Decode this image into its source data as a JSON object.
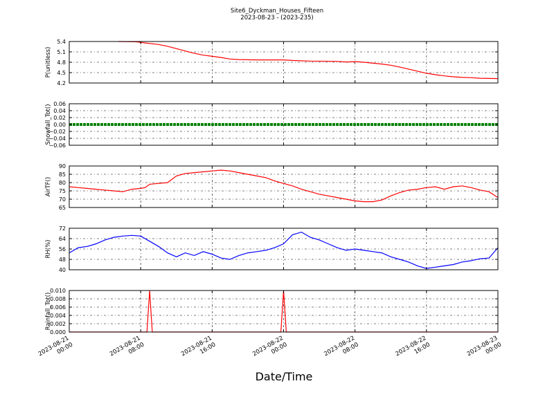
{
  "header": {
    "title": "Site6_Dyckman_Houses_Fifteen",
    "subtitle": "2023-08-23 - (2023-235)"
  },
  "xlabel": "Date/Time",
  "x_ticks": [
    {
      "t": 0,
      "line1": "2023-08-21",
      "line2": "00:00"
    },
    {
      "t": 8,
      "line1": "2023-08-21",
      "line2": "08:00"
    },
    {
      "t": 16,
      "line1": "2023-08-21",
      "line2": "16:00"
    },
    {
      "t": 24,
      "line1": "2023-08-22",
      "line2": "00:00"
    },
    {
      "t": 32,
      "line1": "2023-08-22",
      "line2": "08:00"
    },
    {
      "t": 40,
      "line1": "2023-08-22",
      "line2": "16:00"
    },
    {
      "t": 48,
      "line1": "2023-08-23",
      "line2": "00:00"
    }
  ],
  "chart_data": [
    {
      "type": "line",
      "ylabel": "P(unitless)",
      "ylim": [
        4.2,
        5.6
      ],
      "yticks": [
        "4.2",
        "4.5",
        "4.8",
        "5.1",
        "5.4"
      ],
      "grid": true,
      "color": "#ff0000",
      "x_start": "2023-08-21 00:00",
      "x_end": "2023-08-23 00:00",
      "points": [
        [
          5.5,
          5.6
        ],
        [
          7.5,
          5.59
        ],
        [
          8.5,
          5.55
        ],
        [
          10,
          5.5
        ],
        [
          11,
          5.44
        ],
        [
          12,
          5.36
        ],
        [
          13,
          5.28
        ],
        [
          14,
          5.2
        ],
        [
          15,
          5.14
        ],
        [
          16,
          5.1
        ],
        [
          17,
          5.06
        ],
        [
          18,
          5.01
        ],
        [
          19,
          4.99
        ],
        [
          21,
          4.98
        ],
        [
          24,
          4.98
        ],
        [
          25,
          4.96
        ],
        [
          27,
          4.94
        ],
        [
          30,
          4.93
        ],
        [
          31,
          4.91
        ],
        [
          32,
          4.92
        ],
        [
          33,
          4.9
        ],
        [
          35,
          4.84
        ],
        [
          36,
          4.8
        ],
        [
          37,
          4.74
        ],
        [
          38,
          4.67
        ],
        [
          39,
          4.6
        ],
        [
          40,
          4.53
        ],
        [
          41,
          4.48
        ],
        [
          42,
          4.44
        ],
        [
          43,
          4.41
        ],
        [
          44,
          4.39
        ],
        [
          45,
          4.38
        ],
        [
          46,
          4.36
        ],
        [
          48,
          4.35
        ]
      ]
    },
    {
      "type": "line",
      "ylabel": "Snowfall_Tot()",
      "ylim": [
        -0.06,
        0.06
      ],
      "yticks": [
        "−0.06",
        "−0.04",
        "−0.02",
        "0.00",
        "0.02",
        "0.04",
        "0.06"
      ],
      "grid": true,
      "color": "#008000",
      "x_start": "2023-08-21 00:00",
      "x_end": "2023-08-23 00:00",
      "points": [
        [
          0,
          0
        ],
        [
          48,
          0
        ]
      ]
    },
    {
      "type": "line",
      "ylabel": "AirTF()",
      "ylim": [
        65,
        90
      ],
      "yticks": [
        "65",
        "70",
        "75",
        "80",
        "85",
        "90"
      ],
      "grid": true,
      "color": "#ff0000",
      "x_start": "2023-08-21 00:00",
      "x_end": "2023-08-23 00:00",
      "points": [
        [
          0,
          77.5
        ],
        [
          1,
          77
        ],
        [
          2,
          76.5
        ],
        [
          3,
          76
        ],
        [
          4,
          75.5
        ],
        [
          5,
          75
        ],
        [
          6,
          74.5
        ],
        [
          7,
          76
        ],
        [
          8,
          76.5
        ],
        [
          8.5,
          77
        ],
        [
          9,
          79
        ],
        [
          10,
          79.5
        ],
        [
          11,
          80
        ],
        [
          12,
          84
        ],
        [
          13,
          85.5
        ],
        [
          14,
          86
        ],
        [
          15,
          86.5
        ],
        [
          16,
          87
        ],
        [
          17,
          87.5
        ],
        [
          18,
          87
        ],
        [
          19,
          86
        ],
        [
          20,
          85
        ],
        [
          21,
          84
        ],
        [
          22,
          83
        ],
        [
          23,
          81
        ],
        [
          24,
          79.5
        ],
        [
          25,
          78
        ],
        [
          26,
          76
        ],
        [
          27,
          74.5
        ],
        [
          28,
          73
        ],
        [
          29,
          72
        ],
        [
          30,
          71
        ],
        [
          31,
          70
        ],
        [
          32,
          69
        ],
        [
          33,
          68.5
        ],
        [
          34,
          68.5
        ],
        [
          35,
          69.5
        ],
        [
          36,
          72
        ],
        [
          37,
          74
        ],
        [
          38,
          75.5
        ],
        [
          39,
          76
        ],
        [
          40,
          77
        ],
        [
          41,
          77.5
        ],
        [
          42,
          76
        ],
        [
          43,
          77.5
        ],
        [
          44,
          78
        ],
        [
          45,
          77
        ],
        [
          46,
          75.5
        ],
        [
          47,
          74.5
        ],
        [
          48,
          71
        ]
      ]
    },
    {
      "type": "line",
      "ylabel": "RH(%)",
      "ylim": [
        40,
        72
      ],
      "yticks": [
        "40",
        "48",
        "56",
        "64",
        "72"
      ],
      "grid": true,
      "color": "#0000ff",
      "x_start": "2023-08-21 00:00",
      "x_end": "2023-08-23 00:00",
      "points": [
        [
          0,
          53
        ],
        [
          1,
          57
        ],
        [
          2,
          58
        ],
        [
          3,
          60
        ],
        [
          4,
          63
        ],
        [
          5,
          65
        ],
        [
          6,
          66
        ],
        [
          7,
          66.5
        ],
        [
          8,
          66
        ],
        [
          9,
          62
        ],
        [
          10,
          58
        ],
        [
          11,
          53
        ],
        [
          12,
          50
        ],
        [
          13,
          53
        ],
        [
          14,
          51
        ],
        [
          15,
          54
        ],
        [
          16,
          52
        ],
        [
          17,
          49
        ],
        [
          18,
          48
        ],
        [
          19,
          51
        ],
        [
          20,
          53
        ],
        [
          21,
          54
        ],
        [
          22,
          55
        ],
        [
          23,
          57
        ],
        [
          24,
          60
        ],
        [
          25,
          67
        ],
        [
          26,
          69
        ],
        [
          27,
          65
        ],
        [
          28,
          63
        ],
        [
          29,
          60
        ],
        [
          30,
          57
        ],
        [
          31,
          55
        ],
        [
          32,
          56
        ],
        [
          33,
          55
        ],
        [
          34,
          54
        ],
        [
          35,
          53
        ],
        [
          36,
          50
        ],
        [
          37,
          48
        ],
        [
          38,
          46
        ],
        [
          39,
          43
        ],
        [
          40,
          41
        ],
        [
          41,
          42
        ],
        [
          42,
          43
        ],
        [
          43,
          44
        ],
        [
          44,
          46
        ],
        [
          45,
          47
        ],
        [
          46,
          48.5
        ],
        [
          47,
          49
        ],
        [
          48,
          57
        ]
      ]
    },
    {
      "type": "line",
      "ylabel": "Rainfall_Tot()",
      "ylim": [
        0,
        0.01
      ],
      "yticks": [
        "0.000",
        "0.002",
        "0.004",
        "0.006",
        "0.008",
        "0.010"
      ],
      "grid": true,
      "color": "#ff0000",
      "x_start": "2023-08-21 00:00",
      "x_end": "2023-08-23 00:00",
      "points": [
        [
          0,
          0
        ],
        [
          8.7,
          0
        ],
        [
          9,
          0.01
        ],
        [
          9.3,
          0
        ],
        [
          23.7,
          0
        ],
        [
          24,
          0.01
        ],
        [
          24.3,
          0
        ],
        [
          48,
          0
        ]
      ]
    }
  ]
}
